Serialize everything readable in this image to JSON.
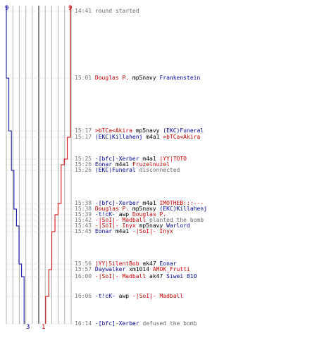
{
  "colors": {
    "team_red": "#cc0000",
    "team_blue": "#000099",
    "weapon": "#000000",
    "time": "#777777",
    "message": "#666666",
    "grid": "#b0b0b0",
    "grid_dark": "#555555"
  },
  "counters": {
    "blue_start": "9",
    "red_start": "9",
    "blue_end": "3",
    "red_end": "1"
  },
  "events": [
    {
      "time": "14:41",
      "message": "round started",
      "kind": "info"
    },
    {
      "time": "15:01",
      "killer": "Douglas P.",
      "killer_team": "r",
      "weapon": "mp5navy",
      "victim": "Frankenstein",
      "victim_team": "b",
      "kind": "kill"
    },
    {
      "time": "15:17",
      "killer": ">bTCa<Akira",
      "killer_team": "r",
      "weapon": "mp5navy",
      "victim": "(EKC)Funeral",
      "victim_team": "b",
      "kind": "kill"
    },
    {
      "time": "15:17",
      "killer": "(EKC)Killahenj",
      "killer_team": "b",
      "weapon": "m4a1",
      "victim": ">bTCa<Akira",
      "victim_team": "r",
      "kind": "kill"
    },
    {
      "time": "15:25",
      "killer": "-[bfc]-Xerber",
      "killer_team": "b",
      "weapon": "m4a1",
      "victim": "|YY|TOTO",
      "victim_team": "r",
      "kind": "kill"
    },
    {
      "time": "15:26",
      "killer": "Eonar",
      "killer_team": "b",
      "weapon": "m4a1",
      "victim": "Fruzelnuzel",
      "victim_team": "r",
      "kind": "kill"
    },
    {
      "time": "15:26",
      "actor": "(EKC)Funeral",
      "actor_team": "b",
      "message": "disconnected",
      "kind": "action"
    },
    {
      "time": "15:38",
      "killer": "-[bfc]-Xerber",
      "killer_team": "b",
      "weapon": "m4a1",
      "victim": "IMOTHEB:::---",
      "victim_team": "r",
      "kind": "kill"
    },
    {
      "time": "15:38",
      "killer": "Douglas P.",
      "killer_team": "r",
      "weapon": "mp5navy",
      "victim": "(EKC)Killahenj",
      "victim_team": "b",
      "kind": "kill"
    },
    {
      "time": "15:39",
      "killer": "-t!cK-",
      "killer_team": "b",
      "weapon": "awp",
      "victim": "Douglas P.",
      "victim_team": "r",
      "kind": "kill"
    },
    {
      "time": "15:42",
      "actor": "-|SoI|- Madball",
      "actor_team": "r",
      "message": "planted the bomb",
      "kind": "action"
    },
    {
      "time": "15:43",
      "killer": "-|SoI|- Inyx",
      "killer_team": "r",
      "weapon": "mp5navy",
      "victim": "Warlord",
      "victim_team": "b",
      "kind": "kill"
    },
    {
      "time": "15:45",
      "killer": "Eonar",
      "killer_team": "b",
      "weapon": "m4a1",
      "victim": "-|SoI|- Inyx",
      "victim_team": "r",
      "kind": "kill"
    },
    {
      "time": "15:56",
      "killer": "|YY|SilentBob",
      "killer_team": "r",
      "weapon": "ak47",
      "victim": "Eonar",
      "victim_team": "b",
      "kind": "kill"
    },
    {
      "time": "15:57",
      "killer": "Daywalker",
      "killer_team": "b",
      "weapon": "xm1014",
      "victim": "AMOK_Frutti",
      "victim_team": "r",
      "kind": "kill"
    },
    {
      "time": "16:00",
      "killer": "-|SoI|- Madball",
      "killer_team": "r",
      "weapon": "ak47",
      "victim": "Siwei 810",
      "victim_team": "b",
      "kind": "kill"
    },
    {
      "time": "16:06",
      "killer": "-t!cK-",
      "killer_team": "b",
      "weapon": "awp",
      "victim": "-|SoI|- Madball",
      "victim_team": "r",
      "kind": "kill"
    },
    {
      "time": "16:14",
      "actor": "-[bfc]-Xerber",
      "actor_team": "b",
      "message": "defused the bomb",
      "kind": "action"
    }
  ]
}
